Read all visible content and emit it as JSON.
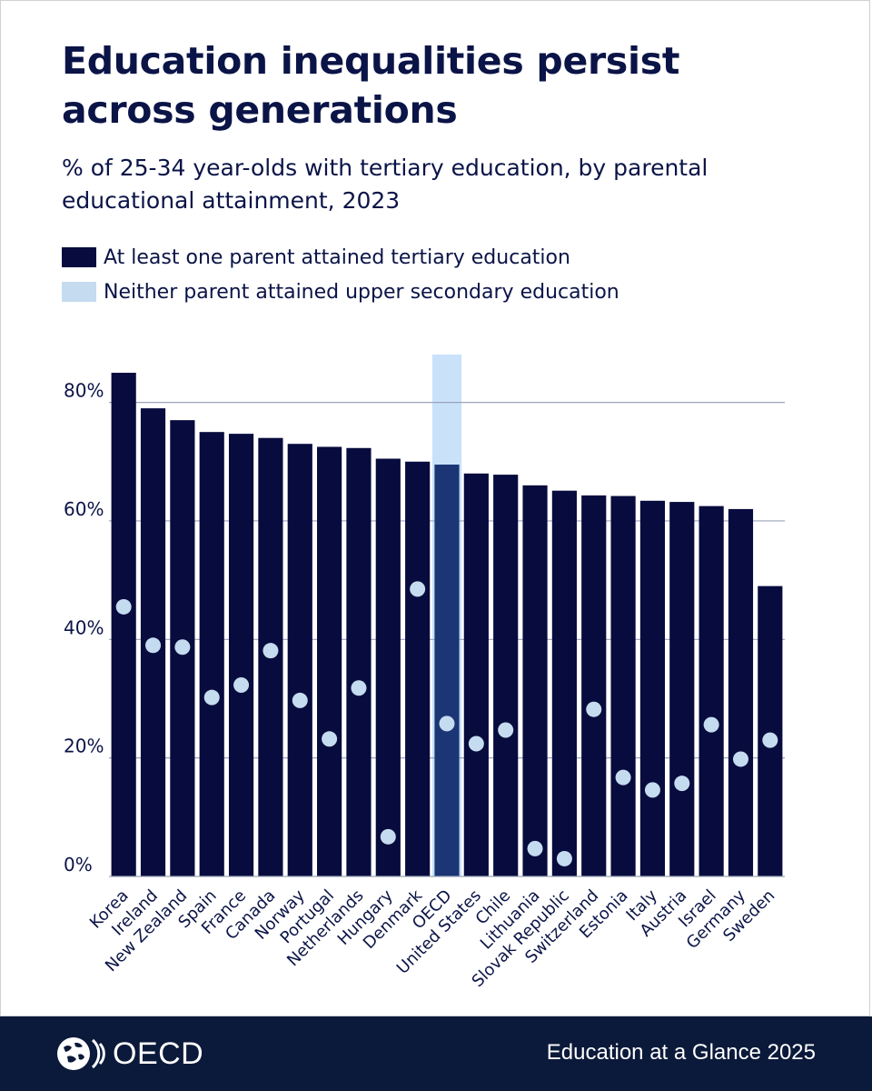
{
  "header": {
    "title": "Education inequalities persist across generations",
    "subtitle": "% of 25-34 year-olds with tertiary education, by parental educational attainment, 2023"
  },
  "legend": {
    "items": [
      {
        "label": "At least one parent attained tertiary education",
        "color": "#070b3d"
      },
      {
        "label": "Neither parent attained upper secondary education",
        "color": "#c5dbef"
      }
    ]
  },
  "chart_data": {
    "type": "bar",
    "title": "Education inequalities persist across generations",
    "subtitle": "% of 25-34 year-olds with tertiary education, by parental educational attainment, 2023",
    "xlabel": "",
    "ylabel": "",
    "ylim": [
      0,
      85
    ],
    "yticks": [
      0,
      20,
      40,
      60,
      80
    ],
    "ytick_labels": [
      "0%",
      "20%",
      "40%",
      "60%",
      "80%"
    ],
    "grid": true,
    "highlight": "OECD",
    "categories": [
      "Korea",
      "Ireland",
      "New Zealand",
      "Spain",
      "France",
      "Canada",
      "Norway",
      "Portugal",
      "Netherlands",
      "Hungary",
      "Denmark",
      "OECD",
      "United States",
      "Chile",
      "Lithuania",
      "Slovak Republic",
      "Switzerland",
      "Estonia",
      "Italy",
      "Austria",
      "Israel",
      "Germany",
      "Sweden"
    ],
    "series": [
      {
        "name": "At least one parent attained tertiary education",
        "mark": "bar",
        "values": [
          85,
          79,
          77,
          75,
          74.7,
          74,
          73,
          72.5,
          72.3,
          70.5,
          70,
          69.5,
          68,
          67.8,
          66,
          65.1,
          64.3,
          64.2,
          63.4,
          63.2,
          62.5,
          62,
          49
        ]
      },
      {
        "name": "Neither parent attained upper secondary education",
        "mark": "dot",
        "values": [
          45.5,
          39,
          38.7,
          30.2,
          32.3,
          38.1,
          29.7,
          23.2,
          31.8,
          6.7,
          48.5,
          25.8,
          22.4,
          24.7,
          4.7,
          3,
          28.2,
          16.7,
          14.6,
          15.7,
          25.6,
          19.8,
          23
        ]
      }
    ]
  },
  "footer": {
    "logo_text": "OECD",
    "publication": "Education at a Glance 2025"
  },
  "colors": {
    "bar": "#070b3d",
    "bar_highlight": "#1b3575",
    "highlight_band": "#c9e2fa",
    "dot": "#c5dbef",
    "gridline": "#9aa4ba",
    "footer_bg": "#0b1a3a"
  }
}
